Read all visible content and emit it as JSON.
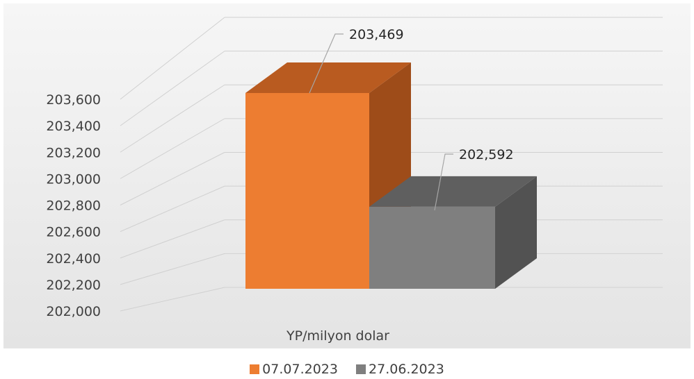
{
  "chart_data": {
    "type": "bar",
    "style": "3d-clustered-column",
    "categories": [
      "YP/milyon dolar"
    ],
    "series": [
      {
        "name": "07.07.2023",
        "values": [
          203469
        ],
        "color": "#ED7D31"
      },
      {
        "name": "27.06.2023",
        "values": [
          202592
        ],
        "color": "#7F7F7F"
      }
    ],
    "data_labels": [
      "203,469",
      "202,592"
    ],
    "yticks": [
      "202,000",
      "202,200",
      "202,400",
      "202,600",
      "202,800",
      "203,000",
      "203,200",
      "203,400",
      "203,600"
    ],
    "ylim": [
      202000,
      203600
    ],
    "grid": true,
    "legend_position": "bottom",
    "title": "",
    "xlabel": "",
    "ylabel": ""
  }
}
